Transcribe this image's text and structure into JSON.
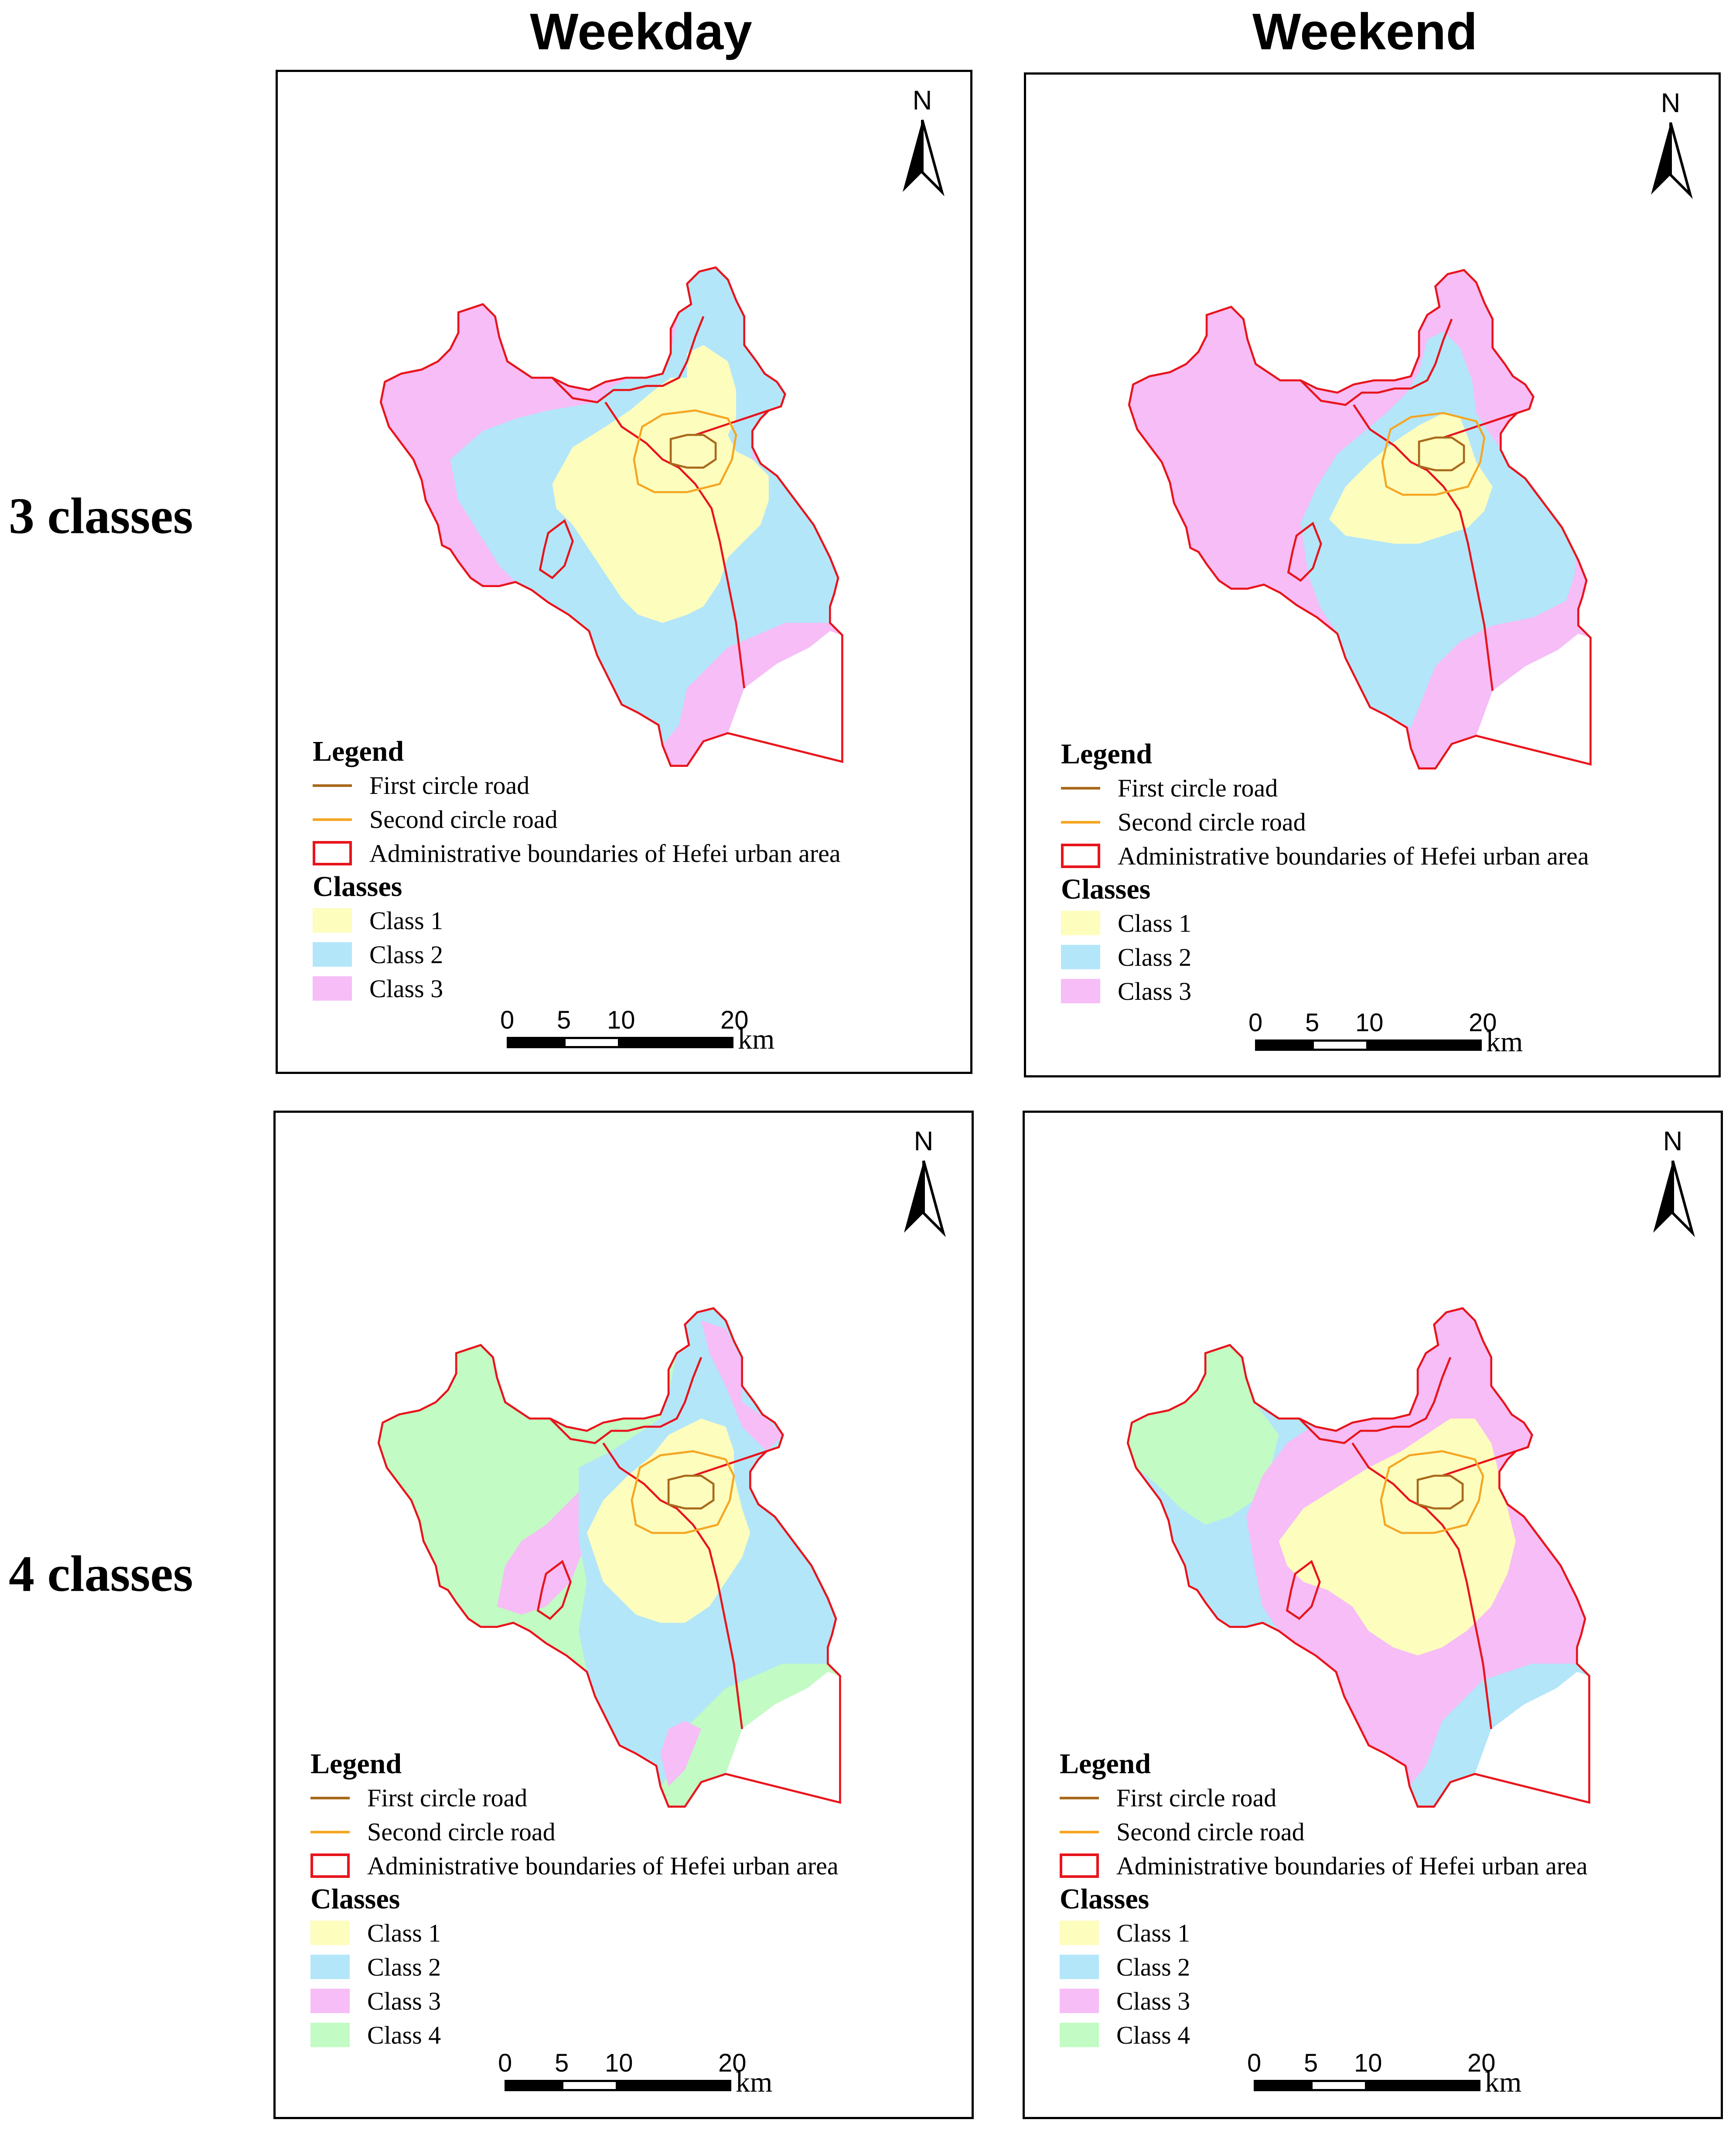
{
  "column_titles": [
    "Weekday",
    "Weekend"
  ],
  "row_titles": [
    "3 classes",
    "4 classes"
  ],
  "north_label": "N",
  "legend": {
    "heading": "Legend",
    "first_circle_road": "First circle road",
    "second_circle_road": "Second circle road",
    "admin_boundary": "Administrative boundaries of Hefei urban area",
    "classes_heading": "Classes",
    "class_labels": [
      "Class 1",
      "Class 2",
      "Class 3",
      "Class 4"
    ]
  },
  "colors": {
    "class_1": "#fdfdbe",
    "class_2": "#b3e6f9",
    "class_3": "#f6bdf6",
    "class_4": "#c2fbc4",
    "first_circle_road": "#a8691b",
    "second_circle_road": "#f5a623",
    "admin_boundary": "#e8141c"
  },
  "scale_bar": {
    "ticks": [
      "0",
      "5",
      "10",
      "20"
    ],
    "unit": "km"
  },
  "panels": [
    {
      "name": "weekday-3-classes",
      "classes": 3
    },
    {
      "name": "weekend-3-classes",
      "classes": 3
    },
    {
      "name": "weekday-4-classes",
      "classes": 4
    },
    {
      "name": "weekend-4-classes",
      "classes": 4
    }
  ]
}
